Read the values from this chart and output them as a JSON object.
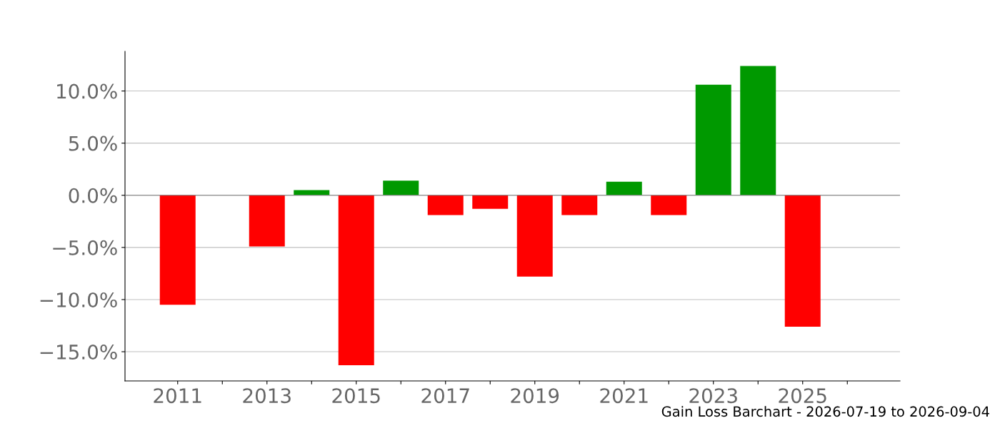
{
  "chart_data": {
    "type": "bar",
    "x": [
      2011,
      2013,
      2014,
      2015,
      2016,
      2017,
      2018,
      2019,
      2020,
      2021,
      2022,
      2023,
      2024,
      2025
    ],
    "values": [
      -10.5,
      -4.9,
      0.5,
      -16.3,
      1.4,
      -1.9,
      -1.3,
      -7.8,
      -1.9,
      1.3,
      -1.9,
      10.6,
      12.4,
      -12.6
    ],
    "colors": [
      "#ff0000",
      "#ff0000",
      "#009900",
      "#ff0000",
      "#009900",
      "#ff0000",
      "#ff0000",
      "#ff0000",
      "#ff0000",
      "#009900",
      "#ff0000",
      "#009900",
      "#009900",
      "#ff0000"
    ],
    "xlim": [
      2009.82,
      2027.18
    ],
    "xticks": [
      2011,
      {
        "value": 2012,
        "label": null
      },
      2013,
      {
        "value": 2014,
        "label": null
      },
      2015,
      {
        "value": 2016,
        "label": null
      },
      2017,
      {
        "value": 2018,
        "label": null
      },
      2019,
      {
        "value": 2020,
        "label": null
      },
      2021,
      {
        "value": 2022,
        "label": null
      },
      2023,
      {
        "value": 2024,
        "label": null
      },
      2025,
      {
        "value": 2026,
        "label": null
      }
    ],
    "ylim": [
      -17.8,
      13.8
    ],
    "yticks": [
      {
        "value": -15,
        "label": "−15.0%"
      },
      {
        "value": -10,
        "label": "−10.0%"
      },
      {
        "value": -5,
        "label": "−5.0%"
      },
      {
        "value": 0,
        "label": "0.0%"
      },
      {
        "value": 5,
        "label": "5.0%"
      },
      {
        "value": 10,
        "label": "10.0%"
      }
    ],
    "grid": "y",
    "ref_lines": [
      {
        "axis": "y",
        "value": 0,
        "color": "#808080"
      }
    ],
    "annotations": [
      "Gain Loss Barchart - 2026-07-19 to 2026-09-04"
    ]
  }
}
